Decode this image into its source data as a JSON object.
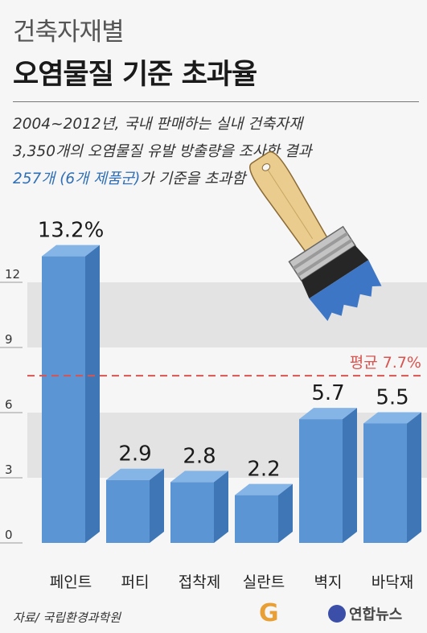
{
  "header": {
    "title_line1": "건축자재별",
    "title_line2": "오염물질 기준 초과율",
    "subtitle_line1": "2004~2012년, 국내 판매하는 실내 건축자재",
    "subtitle_line2": "3,350개의 오염물질 유발 방출량을 조사한 결과",
    "subtitle_line3_highlight": "257개 (6개 제품군)",
    "subtitle_line3_rest": "가 기준을 초과함"
  },
  "chart_data": {
    "type": "bar",
    "categories": [
      "페인트",
      "퍼티",
      "접착제",
      "실란트",
      "벽지",
      "바닥재"
    ],
    "values": [
      13.2,
      2.9,
      2.8,
      2.2,
      5.7,
      5.5
    ],
    "value_labels": [
      "13.2%",
      "2.9",
      "2.8",
      "2.2",
      "5.7",
      "5.5"
    ],
    "yticks": [
      0,
      3,
      6,
      9,
      12
    ],
    "ylim": [
      0,
      12
    ],
    "grid": "alternating bands",
    "reference_line": {
      "value": 7.7,
      "label": "평균 7.7%"
    }
  },
  "colors": {
    "bar_front": "#5b95d4",
    "bar_side": "#3e76b6",
    "bar_top": "#85b4e6",
    "band": "#e3e3e3",
    "reference": "#d9534f"
  },
  "footer": {
    "source": "자료/ 국립환경과학원",
    "logo_g": "G",
    "logo_text": "연합뉴스"
  }
}
